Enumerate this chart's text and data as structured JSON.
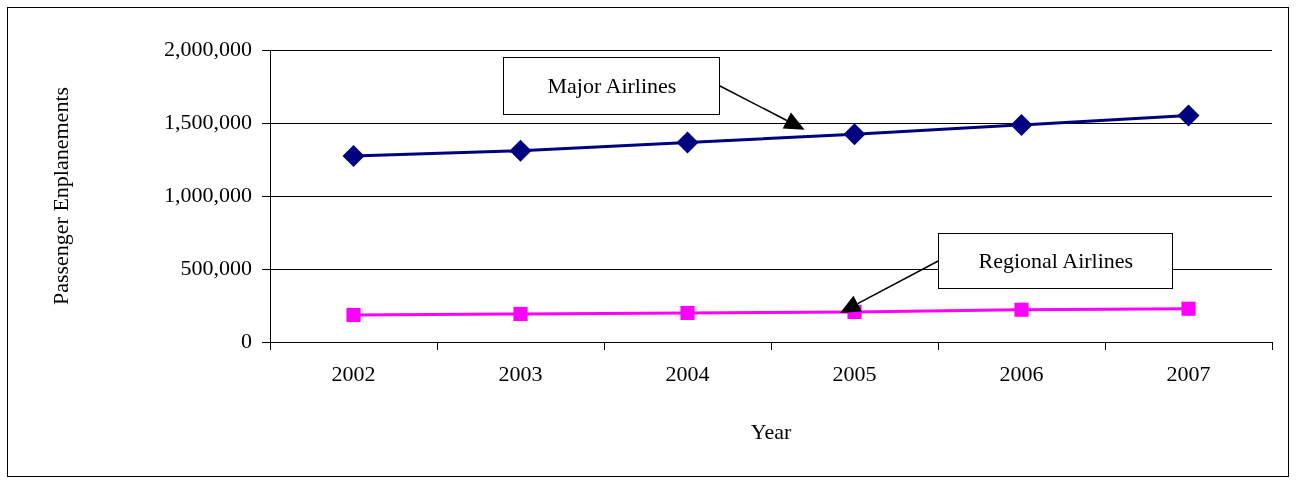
{
  "chart_data": {
    "type": "line",
    "xlabel": "Year",
    "ylabel": "Passenger Enplanements",
    "categories": [
      "2002",
      "2003",
      "2004",
      "2005",
      "2006",
      "2007"
    ],
    "series": [
      {
        "name": "Major Airlines",
        "color": "#000080",
        "marker": "diamond",
        "values": [
          1274000,
          1310000,
          1366000,
          1423000,
          1487000,
          1551000
        ]
      },
      {
        "name": "Regional Airlines",
        "color": "#ff00ff",
        "marker": "square",
        "values": [
          185000,
          192000,
          199000,
          206000,
          221000,
          228000
        ]
      }
    ],
    "ylim": [
      0,
      2000000
    ],
    "yticks": [
      0,
      {
        "value": 500000,
        "label": "500,000"
      },
      {
        "value": 1000000,
        "label": "1,000,000"
      },
      {
        "value": 1500000,
        "label": "1,500,000"
      },
      {
        "value": 2000000,
        "label": "2,000,000"
      }
    ],
    "grid": "y",
    "legend": false
  }
}
